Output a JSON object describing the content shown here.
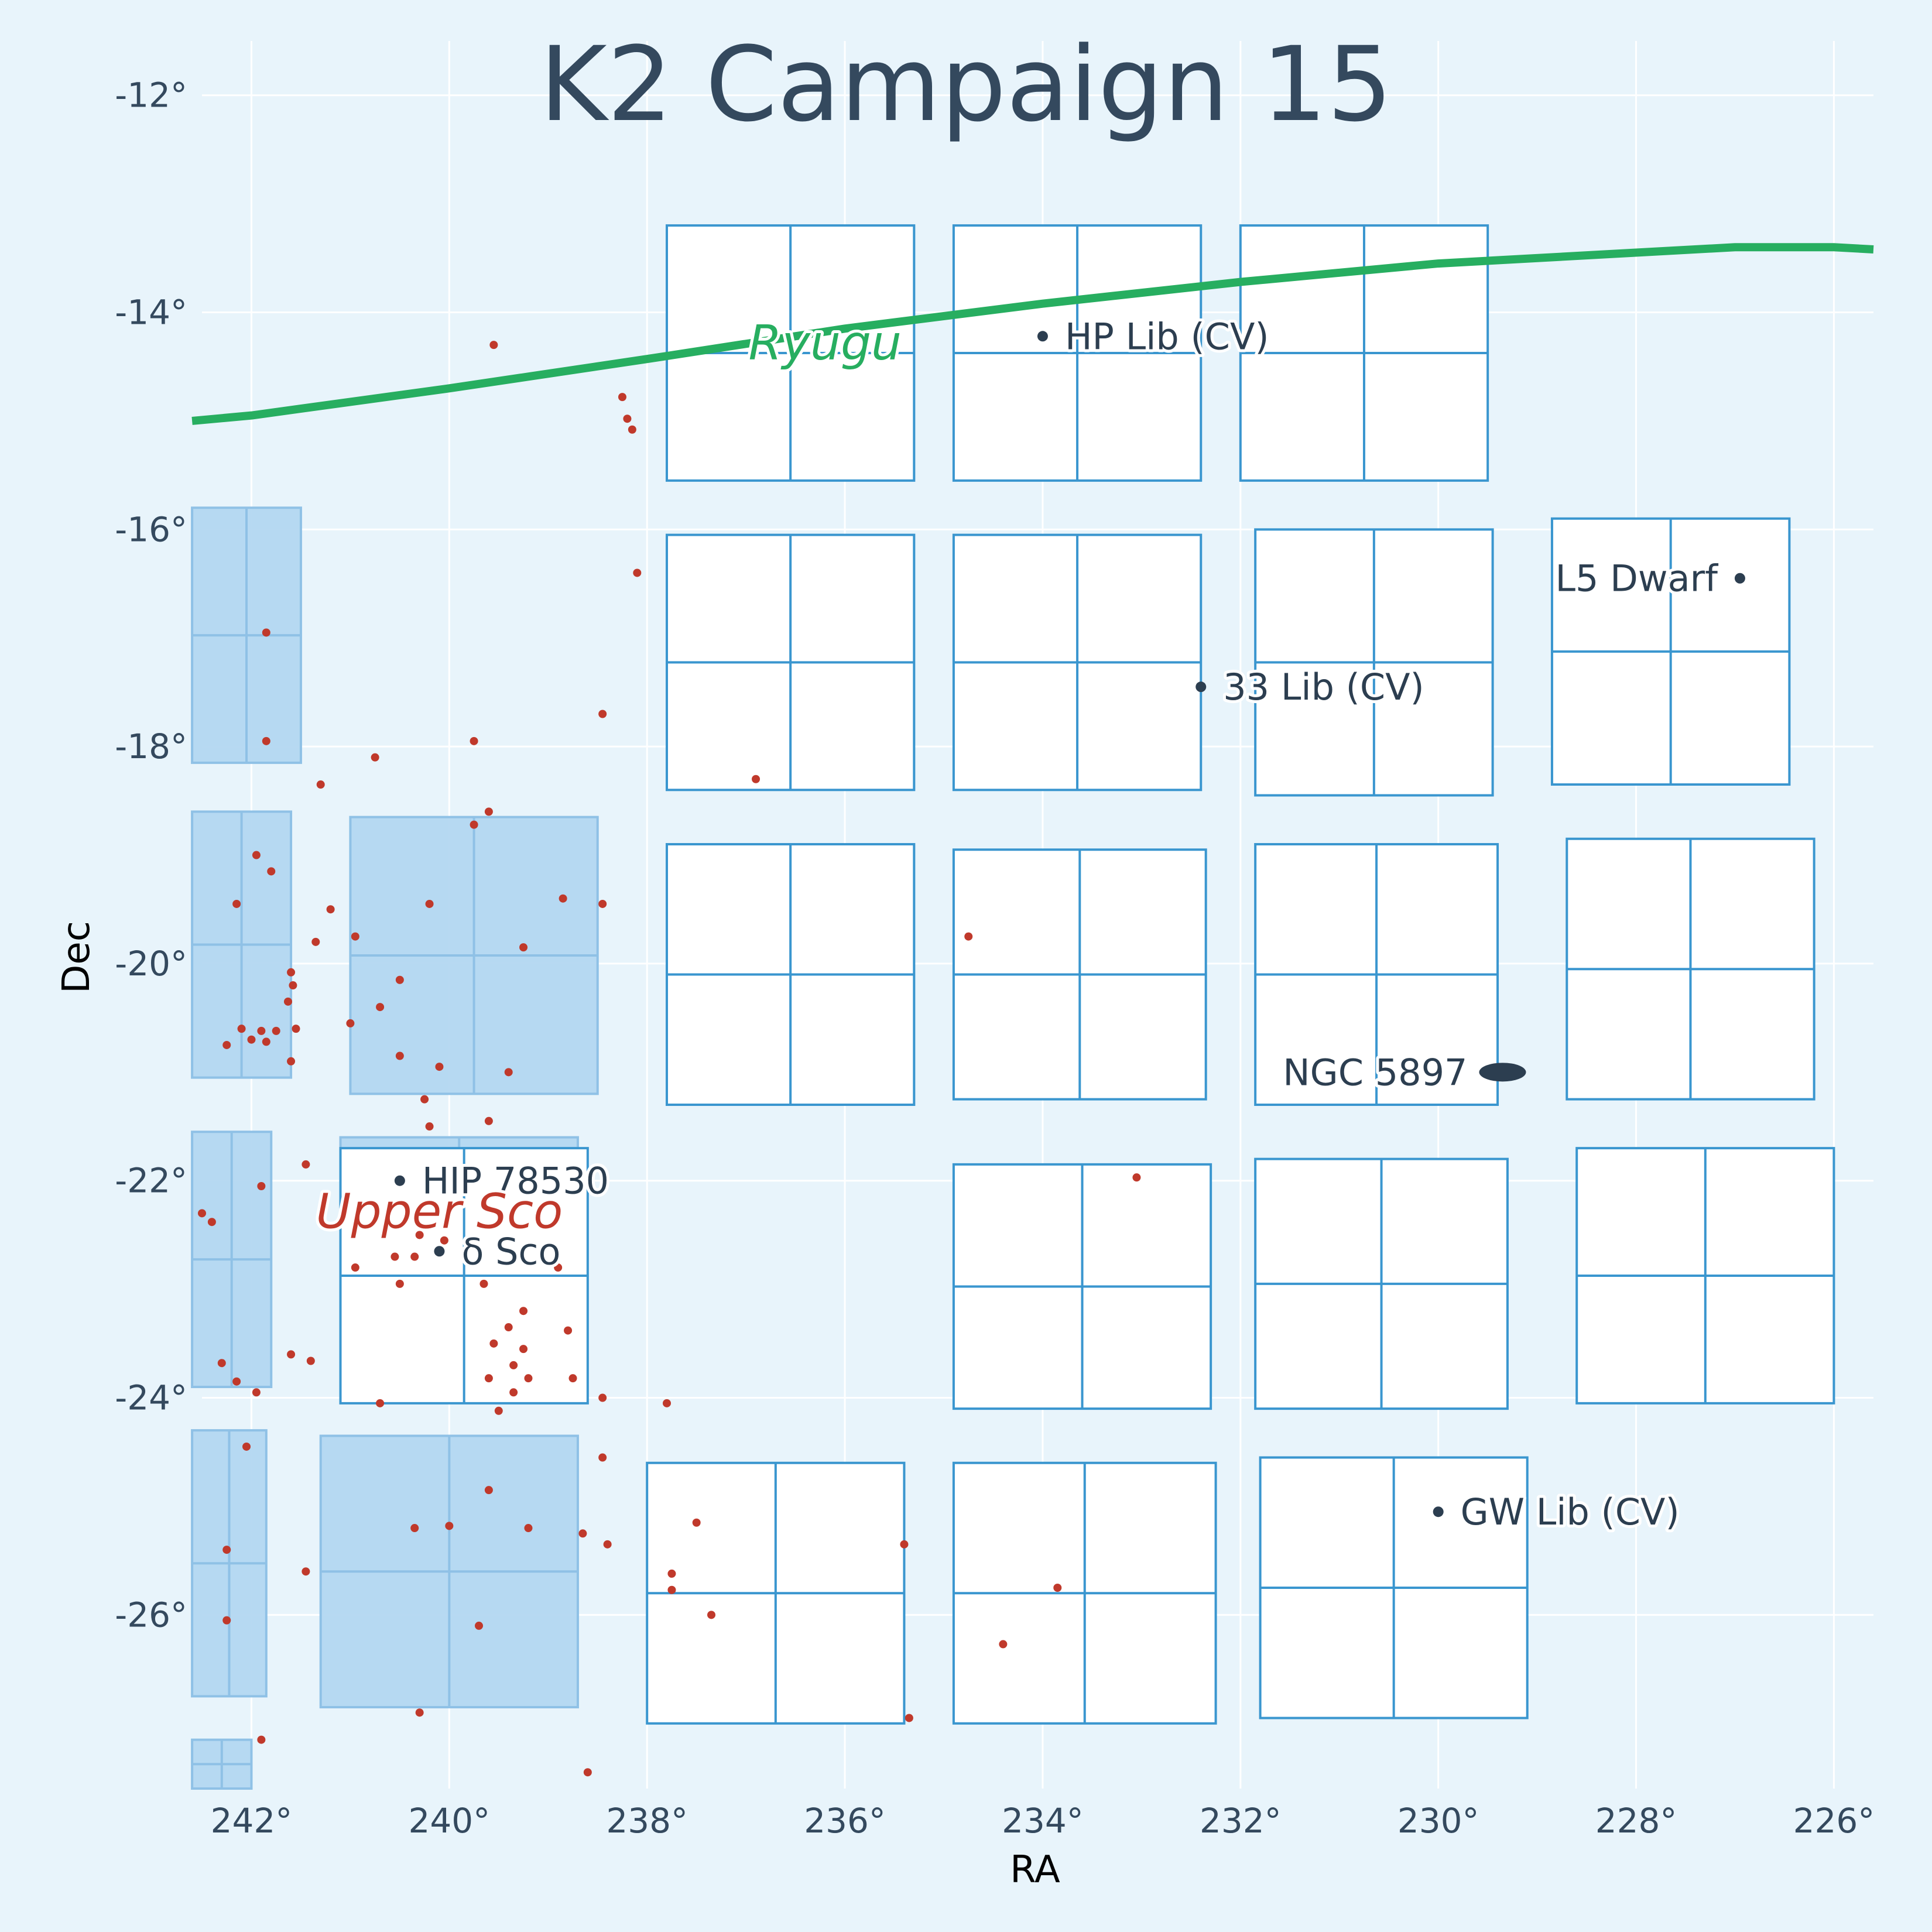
{
  "chart_data": {
    "type": "scatter",
    "title": "K2 Campaign 15",
    "xlabel": "RA",
    "ylabel": "Dec",
    "xlim": [
      242.5,
      225.6
    ],
    "ylim": [
      -27.6,
      -11.5
    ],
    "grid": true,
    "x_ticks": [
      {
        "v": 242,
        "label": "242°"
      },
      {
        "v": 240,
        "label": "240°"
      },
      {
        "v": 238,
        "label": "238°"
      },
      {
        "v": 236,
        "label": "236°"
      },
      {
        "v": 234,
        "label": "234°"
      },
      {
        "v": 232,
        "label": "232°"
      },
      {
        "v": 230,
        "label": "230°"
      },
      {
        "v": 228,
        "label": "228°"
      },
      {
        "v": 226,
        "label": "226°"
      }
    ],
    "y_ticks": [
      {
        "v": -12,
        "label": "-12°"
      },
      {
        "v": -14,
        "label": "-14°"
      },
      {
        "v": -16,
        "label": "-16°"
      },
      {
        "v": -18,
        "label": "-18°"
      },
      {
        "v": -20,
        "label": "-20°"
      },
      {
        "v": -22,
        "label": "-22°"
      },
      {
        "v": -24,
        "label": "-24°"
      },
      {
        "v": -26,
        "label": "-26°"
      }
    ],
    "colors": {
      "background": "#e8f4fb",
      "grid": "#ffffff",
      "module_edge": "#3a96cf",
      "module_fill": "#ffffff",
      "shaded_fill": "#b3d7f1",
      "shaded_edge": "#8fc1e6",
      "ryugu_track": "#27ae60",
      "upper_sco": "#c0392b",
      "target": "#2c3e50"
    },
    "ryugu_track": {
      "name": "Ryugu",
      "points": [
        [
          242.6,
          -15.0
        ],
        [
          242,
          -14.95
        ],
        [
          240,
          -14.7
        ],
        [
          238,
          -14.43
        ],
        [
          236,
          -14.15
        ],
        [
          234,
          -13.92
        ],
        [
          232,
          -13.72
        ],
        [
          230,
          -13.55
        ],
        [
          228,
          -13.45
        ],
        [
          227,
          -13.4
        ],
        [
          226,
          -13.4
        ],
        [
          225.6,
          -13.42
        ]
      ]
    },
    "ryugu_label": {
      "text": "Ryugu",
      "ra": 236.2,
      "dec": -14.3
    },
    "upper_sco_label": {
      "text": "Upper Sco",
      "ra": 240.1,
      "dec": -22.3
    },
    "targets": [
      {
        "name": "HP Lib (CV)",
        "ra": 234.0,
        "dec": -14.22,
        "side": "right"
      },
      {
        "name": "33 Lib (CV)",
        "ra": 232.4,
        "dec": -17.45,
        "side": "right"
      },
      {
        "name": "L5 Dwarf",
        "ra": 226.95,
        "dec": -16.45,
        "side": "left"
      },
      {
        "name": "HIP 78530",
        "ra": 240.5,
        "dec": -22.0,
        "side": "right"
      },
      {
        "name": "δ Sco",
        "ra": 240.1,
        "dec": -22.65,
        "side": "right"
      },
      {
        "name": "GW Lib (CV)",
        "ra": 230.0,
        "dec": -25.05,
        "side": "right"
      }
    ],
    "galaxy": {
      "name": "NGC 5897",
      "ra": 229.35,
      "dec": -21.0,
      "side": "left"
    },
    "modules": [
      [
        [
          237.8,
          -13.2
        ],
        [
          235.3,
          -13.2
        ],
        [
          235.3,
          -15.55
        ],
        [
          237.8,
          -15.55
        ]
      ],
      [
        [
          234.9,
          -13.2
        ],
        [
          232.4,
          -13.2
        ],
        [
          232.4,
          -15.55
        ],
        [
          234.9,
          -15.55
        ]
      ],
      [
        [
          232.0,
          -13.2
        ],
        [
          229.5,
          -13.2
        ],
        [
          229.5,
          -15.55
        ],
        [
          232.0,
          -15.55
        ]
      ],
      [
        [
          237.8,
          -16.05
        ],
        [
          235.3,
          -16.05
        ],
        [
          235.3,
          -18.4
        ],
        [
          237.8,
          -18.4
        ]
      ],
      [
        [
          234.9,
          -16.05
        ],
        [
          232.4,
          -16.05
        ],
        [
          232.4,
          -18.4
        ],
        [
          234.9,
          -18.4
        ]
      ],
      [
        [
          231.85,
          -16.0
        ],
        [
          229.45,
          -16.0
        ],
        [
          229.45,
          -18.45
        ],
        [
          231.85,
          -18.45
        ]
      ],
      [
        [
          228.85,
          -15.9
        ],
        [
          226.45,
          -15.9
        ],
        [
          226.45,
          -18.35
        ],
        [
          228.85,
          -18.35
        ]
      ],
      [
        [
          237.8,
          -18.9
        ],
        [
          235.3,
          -18.9
        ],
        [
          235.3,
          -21.3
        ],
        [
          237.8,
          -21.3
        ]
      ],
      [
        [
          234.9,
          -18.95
        ],
        [
          232.35,
          -18.95
        ],
        [
          232.35,
          -21.25
        ],
        [
          234.9,
          -21.25
        ]
      ],
      [
        [
          231.85,
          -18.9
        ],
        [
          229.4,
          -18.9
        ],
        [
          229.4,
          -21.3
        ],
        [
          231.85,
          -21.3
        ]
      ],
      [
        [
          228.7,
          -18.85
        ],
        [
          226.2,
          -18.85
        ],
        [
          226.2,
          -21.25
        ],
        [
          228.7,
          -21.25
        ]
      ],
      [
        [
          241.1,
          -21.7
        ],
        [
          238.6,
          -21.7
        ],
        [
          238.6,
          -24.05
        ],
        [
          241.1,
          -24.05
        ]
      ],
      [
        [
          234.9,
          -21.85
        ],
        [
          232.3,
          -21.85
        ],
        [
          232.3,
          -24.1
        ],
        [
          234.9,
          -24.1
        ]
      ],
      [
        [
          231.85,
          -21.8
        ],
        [
          229.3,
          -21.8
        ],
        [
          229.3,
          -24.1
        ],
        [
          231.85,
          -24.1
        ]
      ],
      [
        [
          228.6,
          -21.7
        ],
        [
          226.0,
          -21.7
        ],
        [
          226.0,
          -24.05
        ],
        [
          228.6,
          -24.05
        ]
      ],
      [
        [
          238.0,
          -24.6
        ],
        [
          235.4,
          -24.6
        ],
        [
          235.4,
          -27.0
        ],
        [
          238.0,
          -27.0
        ]
      ],
      [
        [
          234.9,
          -24.6
        ],
        [
          232.25,
          -24.6
        ],
        [
          232.25,
          -27.0
        ],
        [
          234.9,
          -27.0
        ]
      ],
      [
        [
          231.8,
          -24.55
        ],
        [
          229.1,
          -24.55
        ],
        [
          229.1,
          -26.95
        ],
        [
          231.8,
          -26.95
        ]
      ]
    ],
    "shaded_modules": [
      [
        [
          242.6,
          -15.8
        ],
        [
          241.5,
          -15.8
        ],
        [
          241.5,
          -18.15
        ],
        [
          242.6,
          -18.15
        ]
      ],
      [
        [
          242.6,
          -18.6
        ],
        [
          241.6,
          -18.6
        ],
        [
          241.6,
          -21.05
        ],
        [
          242.6,
          -21.05
        ]
      ],
      [
        [
          241.0,
          -18.65
        ],
        [
          238.5,
          -18.65
        ],
        [
          238.5,
          -21.2
        ],
        [
          241.0,
          -21.2
        ]
      ],
      [
        [
          242.6,
          -21.55
        ],
        [
          241.8,
          -21.55
        ],
        [
          241.8,
          -23.9
        ],
        [
          242.6,
          -23.9
        ]
      ],
      [
        [
          241.1,
          -21.6
        ],
        [
          238.7,
          -21.6
        ],
        [
          238.7,
          -23.95
        ],
        [
          241.1,
          -23.95
        ]
      ],
      [
        [
          242.6,
          -24.3
        ],
        [
          241.85,
          -24.3
        ],
        [
          241.85,
          -26.75
        ],
        [
          242.6,
          -26.75
        ]
      ],
      [
        [
          241.3,
          -24.35
        ],
        [
          238.7,
          -24.35
        ],
        [
          238.7,
          -26.85
        ],
        [
          241.3,
          -26.85
        ]
      ],
      [
        [
          242.6,
          -27.15
        ],
        [
          242.0,
          -27.15
        ],
        [
          242.0,
          -27.6
        ],
        [
          242.6,
          -27.6
        ]
      ]
    ],
    "upper_sco_stars": [
      [
        239.55,
        -14.3
      ],
      [
        238.25,
        -14.78
      ],
      [
        238.2,
        -14.98
      ],
      [
        238.15,
        -15.08
      ],
      [
        238.1,
        -16.4
      ],
      [
        241.85,
        -16.95
      ],
      [
        238.45,
        -17.7
      ],
      [
        241.85,
        -17.95
      ],
      [
        239.75,
        -17.95
      ],
      [
        240.75,
        -18.1
      ],
      [
        241.3,
        -18.35
      ],
      [
        236.9,
        -18.3
      ],
      [
        239.6,
        -18.6
      ],
      [
        239.75,
        -18.72
      ],
      [
        241.95,
        -19.0
      ],
      [
        241.8,
        -19.15
      ],
      [
        242.15,
        -19.45
      ],
      [
        241.2,
        -19.5
      ],
      [
        240.2,
        -19.45
      ],
      [
        238.85,
        -19.4
      ],
      [
        238.45,
        -19.45
      ],
      [
        241.35,
        -19.8
      ],
      [
        240.95,
        -19.75
      ],
      [
        239.25,
        -19.85
      ],
      [
        234.75,
        -19.75
      ],
      [
        241.6,
        -20.08
      ],
      [
        241.58,
        -20.2
      ],
      [
        241.63,
        -20.35
      ],
      [
        240.5,
        -20.15
      ],
      [
        240.7,
        -20.4
      ],
      [
        241.0,
        -20.55
      ],
      [
        242.1,
        -20.6
      ],
      [
        241.9,
        -20.62
      ],
      [
        241.75,
        -20.62
      ],
      [
        241.55,
        -20.6
      ],
      [
        242.0,
        -20.7
      ],
      [
        241.85,
        -20.72
      ],
      [
        242.25,
        -20.75
      ],
      [
        241.6,
        -20.9
      ],
      [
        240.5,
        -20.85
      ],
      [
        240.1,
        -20.95
      ],
      [
        239.4,
        -21.0
      ],
      [
        240.25,
        -21.25
      ],
      [
        240.2,
        -21.5
      ],
      [
        239.6,
        -21.45
      ],
      [
        241.45,
        -21.85
      ],
      [
        233.05,
        -21.97
      ],
      [
        241.9,
        -22.05
      ],
      [
        242.5,
        -22.3
      ],
      [
        242.4,
        -22.38
      ],
      [
        240.3,
        -22.5
      ],
      [
        240.05,
        -22.55
      ],
      [
        240.55,
        -22.7
      ],
      [
        240.35,
        -22.7
      ],
      [
        240.95,
        -22.8
      ],
      [
        238.9,
        -22.8
      ],
      [
        240.5,
        -22.95
      ],
      [
        239.65,
        -22.95
      ],
      [
        239.25,
        -23.2
      ],
      [
        239.4,
        -23.35
      ],
      [
        238.8,
        -23.38
      ],
      [
        239.55,
        -23.5
      ],
      [
        239.25,
        -23.55
      ],
      [
        239.35,
        -23.7
      ],
      [
        241.6,
        -23.6
      ],
      [
        241.4,
        -23.66
      ],
      [
        242.3,
        -23.68
      ],
      [
        242.15,
        -23.85
      ],
      [
        239.6,
        -23.82
      ],
      [
        239.2,
        -23.82
      ],
      [
        238.75,
        -23.82
      ],
      [
        241.95,
        -23.95
      ],
      [
        239.35,
        -23.95
      ],
      [
        238.45,
        -24.0
      ],
      [
        240.7,
        -24.05
      ],
      [
        237.8,
        -24.05
      ],
      [
        239.5,
        -24.12
      ],
      [
        242.05,
        -24.45
      ],
      [
        238.45,
        -24.55
      ],
      [
        239.6,
        -24.85
      ],
      [
        240.35,
        -25.2
      ],
      [
        240.0,
        -25.18
      ],
      [
        239.2,
        -25.2
      ],
      [
        238.65,
        -25.25
      ],
      [
        237.5,
        -25.15
      ],
      [
        238.4,
        -25.35
      ],
      [
        235.4,
        -25.35
      ],
      [
        242.25,
        -25.4
      ],
      [
        241.45,
        -25.6
      ],
      [
        237.75,
        -25.62
      ],
      [
        237.75,
        -25.77
      ],
      [
        233.85,
        -25.75
      ],
      [
        237.35,
        -26.0
      ],
      [
        242.25,
        -26.05
      ],
      [
        239.7,
        -26.1
      ],
      [
        234.4,
        -26.27
      ],
      [
        240.3,
        -26.9
      ],
      [
        235.35,
        -26.95
      ],
      [
        241.9,
        -27.15
      ],
      [
        238.6,
        -27.45
      ]
    ]
  }
}
